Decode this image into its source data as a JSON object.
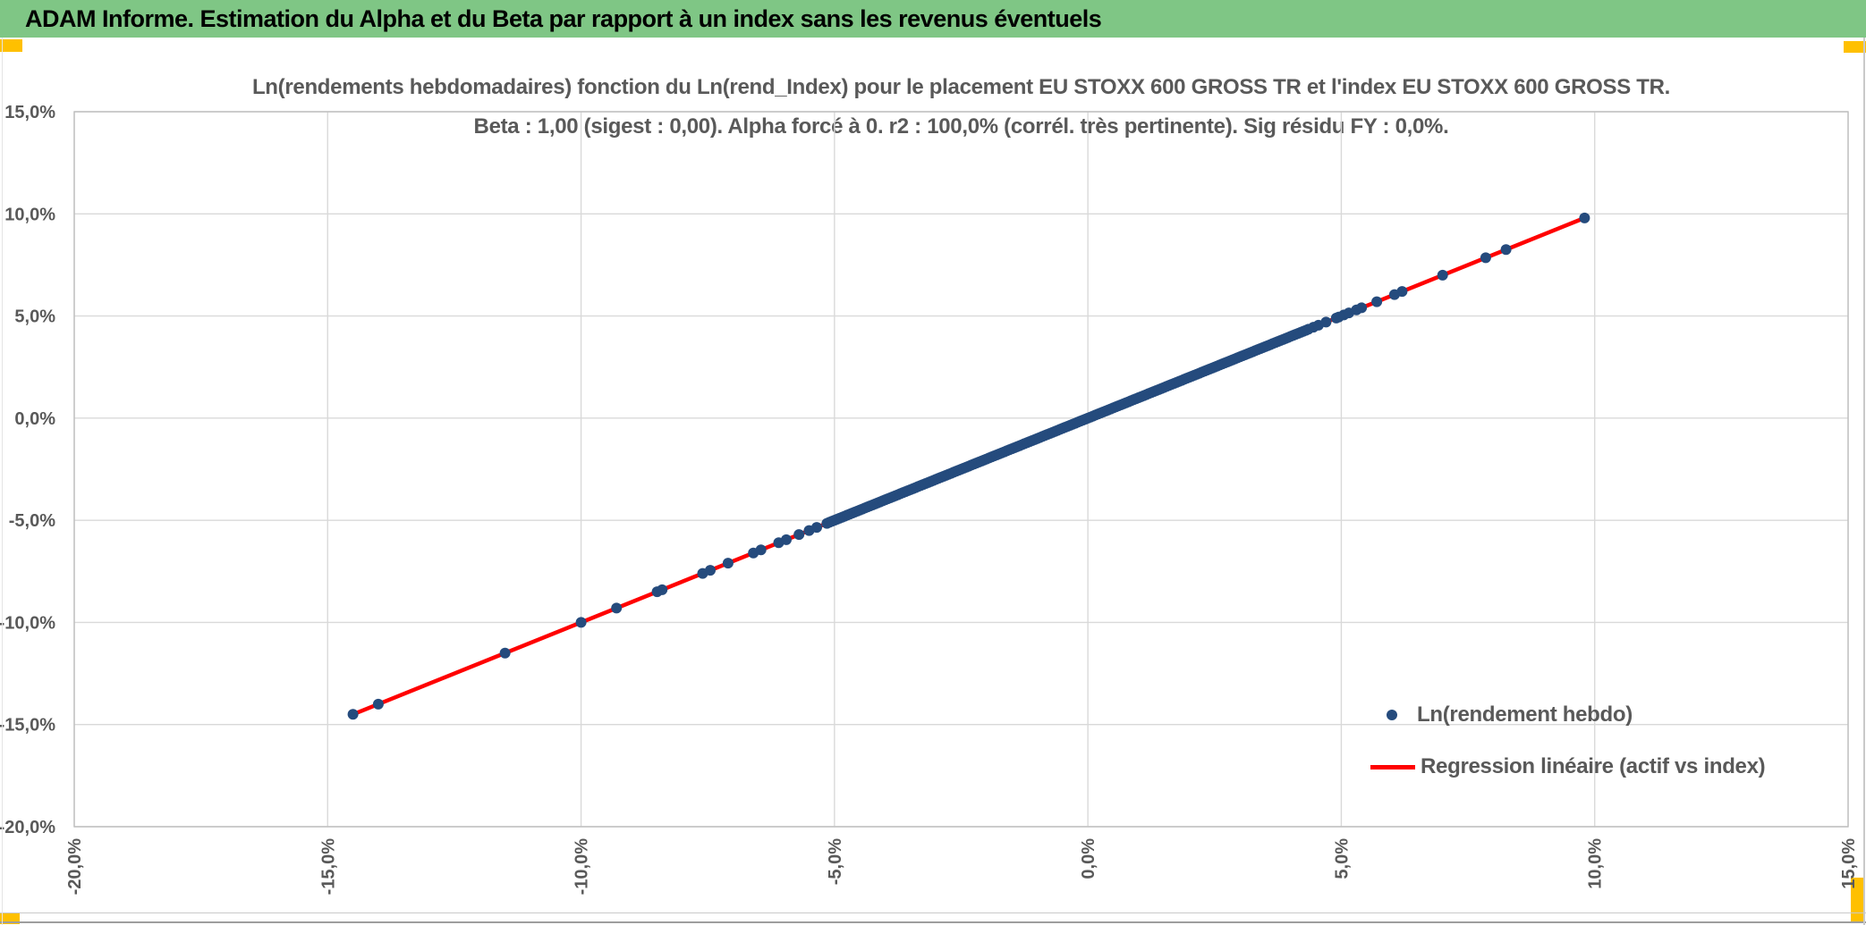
{
  "header": {
    "title": "ADAM Informe. Estimation du Alpha et du Beta par rapport à un index sans les revenus éventuels",
    "bg_color": "#7FC685",
    "accent_color": "#FFC000"
  },
  "chart": {
    "title_line1": "Ln(rendements hebdomadaires) fonction du Ln(rend_Index) pour le placement EU STOXX 600 GROSS TR et l'index EU STOXX 600 GROSS TR.",
    "title_line2": "Beta : 1,00 (sigest : 0,00). Alpha forcé à 0. r2 : 100,0% (corrél. très pertinente). Sig résidu FY : 0,0%.",
    "text_color": "#595959",
    "grid_color": "#D9D9D9",
    "border_color": "#BFBFBF",
    "legend": {
      "points_label": "Ln(rendement hebdo)",
      "line_label": "Regression linéaire (actif vs index)"
    }
  },
  "chart_data": {
    "type": "scatter",
    "title": "Ln(rendements hebdomadaires) fonction du Ln(rend_Index) pour le placement EU STOXX 600 GROSS TR et l'index EU STOXX 600 GROSS TR.",
    "subtitle": "Beta : 1,00 (sigest : 0,00). Alpha forcé à 0. r2 : 100,0% (corrél. très pertinente). Sig résidu FY : 0,0%.",
    "xlabel": "",
    "ylabel": "",
    "xlim_pct": [
      -20,
      15
    ],
    "ylim_pct": [
      -20,
      15
    ],
    "x_ticks_pct": [
      -20,
      -15,
      -10,
      -5,
      0,
      5,
      10,
      15
    ],
    "y_ticks_pct": [
      15,
      10,
      5,
      0,
      -5,
      -10,
      -15,
      -20
    ],
    "x_tick_labels": [
      "-20,0%",
      "-15,0%",
      "-10,0%",
      "-5,0%",
      "0,0%",
      "5,0%",
      "10,0%",
      "15,0%"
    ],
    "y_tick_labels": [
      "15,0%",
      "10,0%",
      "5,0%",
      "0,0%",
      "-5,0%",
      "-10,0%",
      "-15,0%",
      "-20,0%"
    ],
    "grid": true,
    "legend_position": "inside-right-bottom",
    "relation": "all points lie exactly on y = x (asset identical to index)",
    "stats": {
      "beta": "1,00",
      "sigest": "0,00",
      "alpha": "0",
      "r2": "100,0%",
      "sig_residu_fy": "0,0%"
    },
    "series": [
      {
        "name": "Ln(rendement hebdo)",
        "type": "points",
        "marker_color": "#254B7D",
        "on_identity_line": true,
        "outlier_points_pct": [
          -14.5,
          -14.0,
          -11.5,
          -10.0,
          -9.3,
          -8.5,
          -8.4,
          -7.6,
          -7.45,
          -7.1,
          -6.6,
          -6.45,
          -6.1,
          -5.95,
          -5.7,
          -5.5,
          -5.35,
          -5.15,
          4.45,
          4.55,
          4.7,
          4.9,
          4.95,
          5.05,
          5.15,
          5.3,
          5.4,
          5.7,
          6.05,
          6.2,
          7.0,
          7.85,
          8.25,
          9.8
        ],
        "dense_band_pct": {
          "min": -5.1,
          "max": 4.35,
          "step": 0.05
        }
      },
      {
        "name": "Regression linéaire (actif vs index)",
        "type": "line",
        "color": "#FF0000",
        "slope": 1,
        "intercept": 0,
        "x_range_pct": [
          -14.5,
          9.8
        ]
      }
    ]
  }
}
